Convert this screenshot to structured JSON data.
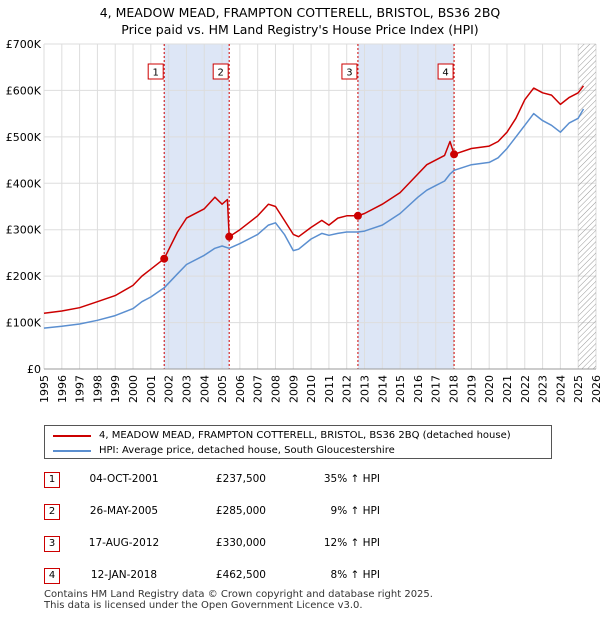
{
  "title": {
    "line1": "4, MEADOW MEAD, FRAMPTON COTTERELL, BRISTOL, BS36 2BQ",
    "line2": "Price paid vs. HM Land Registry's House Price Index (HPI)"
  },
  "colors": {
    "property_line": "#cc0000",
    "hpi_line": "#5b8fd0",
    "shade": "#dde6f6",
    "grid": "#dddddd",
    "marker_border": "#cc0000"
  },
  "chart_data": {
    "type": "line",
    "title": "Price paid vs. HM Land Registry's House Price Index (HPI)",
    "xlim": [
      1995,
      2026
    ],
    "ylim": [
      0,
      700000
    ],
    "x_ticks": [
      "1995",
      "1996",
      "1997",
      "1998",
      "1999",
      "2000",
      "2001",
      "2002",
      "2003",
      "2004",
      "2005",
      "2006",
      "2007",
      "2008",
      "2009",
      "2010",
      "2011",
      "2012",
      "2013",
      "2014",
      "2015",
      "2016",
      "2017",
      "2018",
      "2019",
      "2020",
      "2021",
      "2022",
      "2023",
      "2024",
      "2025",
      "2026"
    ],
    "y_ticks": [
      {
        "value": 0,
        "label": "£0"
      },
      {
        "value": 100000,
        "label": "£100K"
      },
      {
        "value": 200000,
        "label": "£200K"
      },
      {
        "value": 300000,
        "label": "£300K"
      },
      {
        "value": 400000,
        "label": "£400K"
      },
      {
        "value": 500000,
        "label": "£500K"
      },
      {
        "value": 600000,
        "label": "£600K"
      },
      {
        "value": 700000,
        "label": "£700K"
      }
    ],
    "shaded_periods": [
      [
        2001.75,
        2005.4
      ],
      [
        2012.63,
        2018.03
      ]
    ],
    "hatched_from": 2025.0,
    "series": [
      {
        "name": "4, MEADOW MEAD, FRAMPTON COTTERELL, BRISTOL, BS36 2BQ (detached house)",
        "color": "#cc0000",
        "x": [
          1995.0,
          1996.0,
          1997.0,
          1998.0,
          1999.0,
          2000.0,
          2000.5,
          2001.0,
          2001.75,
          2002.5,
          2003.0,
          2004.0,
          2004.6,
          2005.0,
          2005.3,
          2005.4,
          2006.0,
          2007.0,
          2007.6,
          2008.0,
          2008.5,
          2009.0,
          2009.3,
          2010.0,
          2010.6,
          2011.0,
          2011.5,
          2012.0,
          2012.63,
          2013.0,
          2014.0,
          2015.0,
          2016.0,
          2016.5,
          2017.0,
          2017.5,
          2017.8,
          2018.03,
          2019.0,
          2020.0,
          2020.5,
          2021.0,
          2021.5,
          2022.0,
          2022.5,
          2023.0,
          2023.5,
          2024.0,
          2024.5,
          2025.0,
          2025.3
        ],
        "y": [
          120000,
          125000,
          132000,
          145000,
          158000,
          180000,
          200000,
          215000,
          237500,
          295000,
          325000,
          345000,
          370000,
          355000,
          365000,
          285000,
          300000,
          330000,
          355000,
          350000,
          320000,
          290000,
          285000,
          305000,
          320000,
          310000,
          325000,
          330000,
          330000,
          335000,
          355000,
          380000,
          420000,
          440000,
          450000,
          460000,
          490000,
          462500,
          475000,
          480000,
          490000,
          510000,
          540000,
          580000,
          605000,
          595000,
          590000,
          570000,
          585000,
          595000,
          610000
        ]
      },
      {
        "name": "HPI: Average price, detached house, South Gloucestershire",
        "color": "#5b8fd0",
        "x": [
          1995.0,
          1996.0,
          1997.0,
          1998.0,
          1999.0,
          2000.0,
          2000.5,
          2001.0,
          2001.75,
          2002.5,
          2003.0,
          2004.0,
          2004.6,
          2005.0,
          2005.4,
          2006.0,
          2007.0,
          2007.6,
          2008.0,
          2008.5,
          2009.0,
          2009.3,
          2010.0,
          2010.6,
          2011.0,
          2011.5,
          2012.0,
          2012.63,
          2013.0,
          2014.0,
          2015.0,
          2016.0,
          2016.5,
          2017.0,
          2017.5,
          2017.8,
          2018.03,
          2019.0,
          2020.0,
          2020.5,
          2021.0,
          2021.5,
          2022.0,
          2022.5,
          2023.0,
          2023.5,
          2024.0,
          2024.5,
          2025.0,
          2025.3
        ],
        "y": [
          88000,
          92000,
          97000,
          105000,
          115000,
          130000,
          145000,
          155000,
          175000,
          205000,
          225000,
          245000,
          260000,
          265000,
          260000,
          270000,
          290000,
          310000,
          315000,
          290000,
          255000,
          258000,
          280000,
          292000,
          288000,
          292000,
          295000,
          295000,
          297000,
          310000,
          335000,
          370000,
          385000,
          395000,
          405000,
          420000,
          428000,
          440000,
          445000,
          455000,
          475000,
          500000,
          525000,
          550000,
          535000,
          525000,
          510000,
          530000,
          540000,
          560000
        ]
      }
    ],
    "sales": [
      {
        "n": "1",
        "x": 2001.75,
        "price": 237500
      },
      {
        "n": "2",
        "x": 2005.4,
        "price": 285000
      },
      {
        "n": "3",
        "x": 2012.63,
        "price": 330000
      },
      {
        "n": "4",
        "x": 2018.03,
        "price": 462500
      }
    ]
  },
  "legend": [
    {
      "label": "4, MEADOW MEAD, FRAMPTON COTTERELL, BRISTOL, BS36 2BQ (detached house)"
    },
    {
      "label": "HPI: Average price, detached house, South Gloucestershire"
    }
  ],
  "transactions": [
    {
      "n": "1",
      "date": "04-OCT-2001",
      "price": "£237,500",
      "hpi": "35% ↑ HPI"
    },
    {
      "n": "2",
      "date": "26-MAY-2005",
      "price": "£285,000",
      "hpi": "9% ↑ HPI"
    },
    {
      "n": "3",
      "date": "17-AUG-2012",
      "price": "£330,000",
      "hpi": "12% ↑ HPI"
    },
    {
      "n": "4",
      "date": "12-JAN-2018",
      "price": "£462,500",
      "hpi": "8% ↑ HPI"
    }
  ],
  "footer": {
    "line1": "Contains HM Land Registry data © Crown copyright and database right 2025.",
    "line2": "This data is licensed under the Open Government Licence v3.0."
  }
}
